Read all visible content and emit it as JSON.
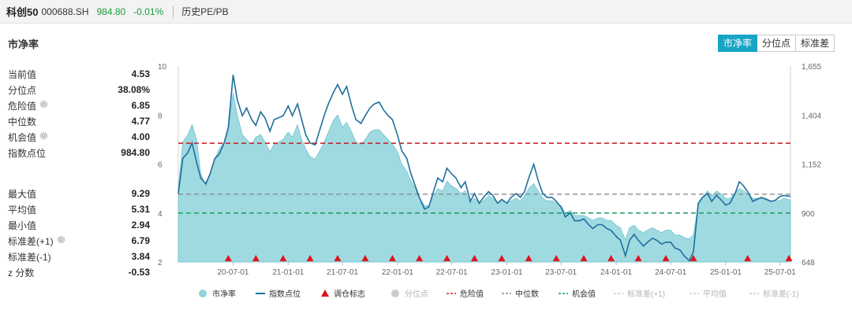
{
  "header": {
    "name": "科创50",
    "code": "000688.SH",
    "price": "984.80",
    "change": "-0.01%",
    "link": "历史PE/PB"
  },
  "section_title": "市净率",
  "tabs": [
    {
      "label": "市净率",
      "active": true
    },
    {
      "label": "分位点",
      "active": false
    },
    {
      "label": "标准差",
      "active": false
    }
  ],
  "stats_top": [
    {
      "label": "当前值",
      "value": "4.53",
      "gear": false
    },
    {
      "label": "分位点",
      "value": "38.08%",
      "gear": false
    },
    {
      "label": "危险值",
      "value": "6.85",
      "gear": true
    },
    {
      "label": "中位数",
      "value": "4.77",
      "gear": false
    },
    {
      "label": "机会值",
      "value": "4.00",
      "gear": true
    },
    {
      "label": "指数点位",
      "value": "984.80",
      "gear": false
    }
  ],
  "stats_bottom": [
    {
      "label": "最大值",
      "value": "9.29",
      "gear": false
    },
    {
      "label": "平均值",
      "value": "5.31",
      "gear": false
    },
    {
      "label": "最小值",
      "value": "2.94",
      "gear": false
    },
    {
      "label": "标准差(+1)",
      "value": "6.79",
      "gear": true
    },
    {
      "label": "标准差(-1)",
      "value": "3.84",
      "gear": false
    },
    {
      "label": "z 分数",
      "value": "-0.53",
      "gear": false
    }
  ],
  "colors": {
    "area": "#8fd3dc",
    "index_line": "#1e6f9c",
    "danger": "#c8262b",
    "median": "#8c8c8c",
    "opportunity": "#1a9a5b",
    "marker": "#e0141b",
    "tab_active": "#17a5c6"
  },
  "chart_data": {
    "type": "area",
    "x_start": "2019-12-31",
    "x_end": "2025-08-05",
    "xticks": [
      "20-07-01",
      "21-01-01",
      "21-07-01",
      "22-01-01",
      "22-07-01",
      "23-01-01",
      "23-07-01",
      "24-01-01",
      "24-07-01",
      "25-01-01",
      "25-07-01"
    ],
    "left_axis": {
      "ticks": [
        "2",
        "4",
        "6",
        "8",
        "10"
      ],
      "range": [
        2,
        10
      ]
    },
    "right_axis": {
      "ticks": [
        "648",
        "900",
        "1,152",
        "1,404",
        "1,655"
      ],
      "range": [
        648,
        1655
      ]
    },
    "danger_value": 6.85,
    "median_value": 4.77,
    "opportunity_value": 4.0,
    "pb_series": [
      [
        "2019-12-31",
        5.0
      ],
      [
        "2020-01-15",
        6.9
      ],
      [
        "2020-02-01",
        7.2
      ],
      [
        "2020-02-15",
        7.6
      ],
      [
        "2020-03-01",
        7.0
      ],
      [
        "2020-03-15",
        5.6
      ],
      [
        "2020-04-01",
        5.1
      ],
      [
        "2020-04-15",
        5.6
      ],
      [
        "2020-05-01",
        6.2
      ],
      [
        "2020-05-15",
        6.6
      ],
      [
        "2020-06-01",
        6.9
      ],
      [
        "2020-06-15",
        7.4
      ],
      [
        "2020-07-01",
        8.9
      ],
      [
        "2020-07-15",
        8.0
      ],
      [
        "2020-08-01",
        7.2
      ],
      [
        "2020-08-15",
        7.0
      ],
      [
        "2020-09-01",
        6.8
      ],
      [
        "2020-09-15",
        7.1
      ],
      [
        "2020-10-01",
        7.2
      ],
      [
        "2020-10-15",
        6.9
      ],
      [
        "2020-11-01",
        6.5
      ],
      [
        "2020-11-15",
        6.8
      ],
      [
        "2020-12-01",
        6.9
      ],
      [
        "2020-12-15",
        7.0
      ],
      [
        "2021-01-01",
        7.3
      ],
      [
        "2021-01-15",
        7.1
      ],
      [
        "2021-02-01",
        7.6
      ],
      [
        "2021-02-15",
        7.0
      ],
      [
        "2021-03-01",
        6.6
      ],
      [
        "2021-03-15",
        6.3
      ],
      [
        "2021-04-01",
        6.2
      ],
      [
        "2021-04-15",
        6.5
      ],
      [
        "2021-05-01",
        6.9
      ],
      [
        "2021-05-15",
        7.3
      ],
      [
        "2021-06-01",
        7.8
      ],
      [
        "2021-06-15",
        8.0
      ],
      [
        "2021-07-01",
        7.5
      ],
      [
        "2021-07-15",
        7.7
      ],
      [
        "2021-08-01",
        7.3
      ],
      [
        "2021-08-15",
        6.9
      ],
      [
        "2021-09-01",
        6.8
      ],
      [
        "2021-09-15",
        7.0
      ],
      [
        "2021-10-01",
        7.3
      ],
      [
        "2021-10-15",
        7.4
      ],
      [
        "2021-11-01",
        7.4
      ],
      [
        "2021-11-15",
        7.2
      ],
      [
        "2021-12-01",
        7.0
      ],
      [
        "2021-12-15",
        6.8
      ],
      [
        "2022-01-01",
        6.5
      ],
      [
        "2022-01-15",
        6.0
      ],
      [
        "2022-02-01",
        5.7
      ],
      [
        "2022-02-15",
        5.3
      ],
      [
        "2022-03-01",
        5.0
      ],
      [
        "2022-03-15",
        4.6
      ],
      [
        "2022-04-01",
        4.3
      ],
      [
        "2022-04-15",
        4.3
      ],
      [
        "2022-05-01",
        4.7
      ],
      [
        "2022-05-15",
        5.0
      ],
      [
        "2022-06-01",
        4.9
      ],
      [
        "2022-06-15",
        5.3
      ],
      [
        "2022-07-01",
        5.1
      ],
      [
        "2022-07-15",
        5.0
      ],
      [
        "2022-08-01",
        4.8
      ],
      [
        "2022-08-15",
        4.9
      ],
      [
        "2022-09-01",
        4.4
      ],
      [
        "2022-09-15",
        4.6
      ],
      [
        "2022-10-01",
        4.4
      ],
      [
        "2022-10-15",
        4.5
      ],
      [
        "2022-11-01",
        4.7
      ],
      [
        "2022-11-15",
        4.6
      ],
      [
        "2022-12-01",
        4.4
      ],
      [
        "2022-12-15",
        4.5
      ],
      [
        "2023-01-01",
        4.4
      ],
      [
        "2023-01-15",
        4.5
      ],
      [
        "2023-02-01",
        4.6
      ],
      [
        "2023-02-15",
        4.5
      ],
      [
        "2023-03-01",
        4.7
      ],
      [
        "2023-03-15",
        5.0
      ],
      [
        "2023-04-01",
        5.2
      ],
      [
        "2023-04-15",
        4.9
      ],
      [
        "2023-05-01",
        4.6
      ],
      [
        "2023-05-15",
        4.5
      ],
      [
        "2023-06-01",
        4.5
      ],
      [
        "2023-06-15",
        4.4
      ],
      [
        "2023-07-01",
        4.3
      ],
      [
        "2023-07-15",
        4.0
      ],
      [
        "2023-08-01",
        4.1
      ],
      [
        "2023-08-15",
        3.9
      ],
      [
        "2023-09-01",
        3.9
      ],
      [
        "2023-09-15",
        3.9
      ],
      [
        "2023-10-01",
        3.8
      ],
      [
        "2023-10-15",
        3.7
      ],
      [
        "2023-11-01",
        3.8
      ],
      [
        "2023-11-15",
        3.8
      ],
      [
        "2023-12-01",
        3.7
      ],
      [
        "2023-12-15",
        3.7
      ],
      [
        "2024-01-01",
        3.5
      ],
      [
        "2024-01-15",
        3.4
      ],
      [
        "2024-02-01",
        2.9
      ],
      [
        "2024-02-15",
        3.4
      ],
      [
        "2024-03-01",
        3.5
      ],
      [
        "2024-03-15",
        3.3
      ],
      [
        "2024-04-01",
        3.2
      ],
      [
        "2024-04-15",
        3.3
      ],
      [
        "2024-05-01",
        3.4
      ],
      [
        "2024-05-15",
        3.3
      ],
      [
        "2024-06-01",
        3.2
      ],
      [
        "2024-06-15",
        3.3
      ],
      [
        "2024-07-01",
        3.3
      ],
      [
        "2024-07-15",
        3.1
      ],
      [
        "2024-08-01",
        3.1
      ],
      [
        "2024-08-15",
        3.0
      ],
      [
        "2024-09-01",
        2.94
      ],
      [
        "2024-09-15",
        3.1
      ],
      [
        "2024-10-01",
        4.3
      ],
      [
        "2024-10-15",
        4.6
      ],
      [
        "2024-11-01",
        4.9
      ],
      [
        "2024-11-15",
        4.7
      ],
      [
        "2024-12-01",
        4.9
      ],
      [
        "2024-12-15",
        4.8
      ],
      [
        "2025-01-01",
        4.6
      ],
      [
        "2025-01-15",
        4.6
      ],
      [
        "2025-02-01",
        4.8
      ],
      [
        "2025-02-15",
        5.0
      ],
      [
        "2025-03-01",
        4.9
      ],
      [
        "2025-03-15",
        4.8
      ],
      [
        "2025-04-01",
        4.6
      ],
      [
        "2025-04-15",
        4.6
      ],
      [
        "2025-05-01",
        4.6
      ],
      [
        "2025-05-15",
        4.6
      ],
      [
        "2025-06-01",
        4.5
      ],
      [
        "2025-06-15",
        4.5
      ],
      [
        "2025-07-01",
        4.5
      ],
      [
        "2025-07-15",
        4.6
      ],
      [
        "2025-08-05",
        4.53
      ]
    ],
    "index_series": [
      [
        "2019-12-31",
        1000
      ],
      [
        "2020-01-15",
        1180
      ],
      [
        "2020-02-01",
        1210
      ],
      [
        "2020-02-15",
        1260
      ],
      [
        "2020-03-01",
        1160
      ],
      [
        "2020-03-15",
        1080
      ],
      [
        "2020-04-01",
        1050
      ],
      [
        "2020-04-15",
        1100
      ],
      [
        "2020-05-01",
        1180
      ],
      [
        "2020-05-15",
        1200
      ],
      [
        "2020-06-01",
        1260
      ],
      [
        "2020-06-15",
        1340
      ],
      [
        "2020-07-01",
        1610
      ],
      [
        "2020-07-15",
        1480
      ],
      [
        "2020-08-01",
        1400
      ],
      [
        "2020-08-15",
        1440
      ],
      [
        "2020-09-01",
        1380
      ],
      [
        "2020-09-15",
        1350
      ],
      [
        "2020-10-01",
        1420
      ],
      [
        "2020-10-15",
        1390
      ],
      [
        "2020-11-01",
        1320
      ],
      [
        "2020-11-15",
        1380
      ],
      [
        "2020-12-01",
        1390
      ],
      [
        "2020-12-15",
        1400
      ],
      [
        "2021-01-01",
        1450
      ],
      [
        "2021-01-15",
        1400
      ],
      [
        "2021-02-01",
        1460
      ],
      [
        "2021-02-15",
        1380
      ],
      [
        "2021-03-01",
        1300
      ],
      [
        "2021-03-15",
        1260
      ],
      [
        "2021-04-01",
        1250
      ],
      [
        "2021-04-15",
        1320
      ],
      [
        "2021-05-01",
        1400
      ],
      [
        "2021-05-15",
        1460
      ],
      [
        "2021-06-01",
        1520
      ],
      [
        "2021-06-15",
        1560
      ],
      [
        "2021-07-01",
        1510
      ],
      [
        "2021-07-15",
        1550
      ],
      [
        "2021-08-01",
        1450
      ],
      [
        "2021-08-15",
        1380
      ],
      [
        "2021-09-01",
        1360
      ],
      [
        "2021-09-15",
        1400
      ],
      [
        "2021-10-01",
        1440
      ],
      [
        "2021-10-15",
        1460
      ],
      [
        "2021-11-01",
        1470
      ],
      [
        "2021-11-15",
        1430
      ],
      [
        "2021-12-01",
        1400
      ],
      [
        "2021-12-15",
        1380
      ],
      [
        "2022-01-01",
        1300
      ],
      [
        "2022-01-15",
        1220
      ],
      [
        "2022-02-01",
        1180
      ],
      [
        "2022-02-15",
        1100
      ],
      [
        "2022-03-01",
        1040
      ],
      [
        "2022-03-15",
        980
      ],
      [
        "2022-04-01",
        920
      ],
      [
        "2022-04-15",
        930
      ],
      [
        "2022-05-01",
        1010
      ],
      [
        "2022-05-15",
        1080
      ],
      [
        "2022-06-01",
        1060
      ],
      [
        "2022-06-15",
        1130
      ],
      [
        "2022-07-01",
        1100
      ],
      [
        "2022-07-15",
        1080
      ],
      [
        "2022-08-01",
        1030
      ],
      [
        "2022-08-15",
        1060
      ],
      [
        "2022-09-01",
        960
      ],
      [
        "2022-09-15",
        1000
      ],
      [
        "2022-10-01",
        950
      ],
      [
        "2022-10-15",
        980
      ],
      [
        "2022-11-01",
        1010
      ],
      [
        "2022-11-15",
        990
      ],
      [
        "2022-12-01",
        950
      ],
      [
        "2022-12-15",
        970
      ],
      [
        "2023-01-01",
        950
      ],
      [
        "2023-01-15",
        980
      ],
      [
        "2023-02-01",
        1000
      ],
      [
        "2023-02-15",
        980
      ],
      [
        "2023-03-01",
        1010
      ],
      [
        "2023-03-15",
        1080
      ],
      [
        "2023-04-01",
        1150
      ],
      [
        "2023-04-15",
        1070
      ],
      [
        "2023-05-01",
        1000
      ],
      [
        "2023-05-15",
        980
      ],
      [
        "2023-06-01",
        980
      ],
      [
        "2023-06-15",
        960
      ],
      [
        "2023-07-01",
        930
      ],
      [
        "2023-07-15",
        880
      ],
      [
        "2023-08-01",
        900
      ],
      [
        "2023-08-15",
        860
      ],
      [
        "2023-09-01",
        860
      ],
      [
        "2023-09-15",
        870
      ],
      [
        "2023-10-01",
        840
      ],
      [
        "2023-10-15",
        820
      ],
      [
        "2023-11-01",
        840
      ],
      [
        "2023-11-15",
        840
      ],
      [
        "2023-12-01",
        820
      ],
      [
        "2023-12-15",
        810
      ],
      [
        "2024-01-01",
        780
      ],
      [
        "2024-01-15",
        760
      ],
      [
        "2024-02-01",
        680
      ],
      [
        "2024-02-15",
        760
      ],
      [
        "2024-03-01",
        790
      ],
      [
        "2024-03-15",
        760
      ],
      [
        "2024-04-01",
        730
      ],
      [
        "2024-04-15",
        750
      ],
      [
        "2024-05-01",
        770
      ],
      [
        "2024-05-15",
        760
      ],
      [
        "2024-06-01",
        740
      ],
      [
        "2024-06-15",
        750
      ],
      [
        "2024-07-01",
        750
      ],
      [
        "2024-07-15",
        720
      ],
      [
        "2024-08-01",
        710
      ],
      [
        "2024-08-15",
        680
      ],
      [
        "2024-09-01",
        655
      ],
      [
        "2024-09-15",
        700
      ],
      [
        "2024-10-01",
        950
      ],
      [
        "2024-10-15",
        980
      ],
      [
        "2024-11-01",
        1000
      ],
      [
        "2024-11-15",
        960
      ],
      [
        "2024-12-01",
        990
      ],
      [
        "2024-12-15",
        970
      ],
      [
        "2025-01-01",
        940
      ],
      [
        "2025-01-15",
        950
      ],
      [
        "2025-02-01",
        1000
      ],
      [
        "2025-02-15",
        1060
      ],
      [
        "2025-03-01",
        1040
      ],
      [
        "2025-03-15",
        1010
      ],
      [
        "2025-04-01",
        960
      ],
      [
        "2025-04-15",
        970
      ],
      [
        "2025-05-01",
        980
      ],
      [
        "2025-05-15",
        970
      ],
      [
        "2025-06-01",
        960
      ],
      [
        "2025-06-15",
        965
      ],
      [
        "2025-07-01",
        985
      ],
      [
        "2025-07-15",
        990
      ],
      [
        "2025-08-05",
        984.8
      ]
    ],
    "rebalance_dates": [
      "2020-06-15",
      "2020-09-15",
      "2020-12-15",
      "2021-03-15",
      "2021-06-15",
      "2021-09-15",
      "2021-12-15",
      "2022-03-15",
      "2022-06-15",
      "2022-09-15",
      "2022-12-15",
      "2023-03-15",
      "2023-06-15",
      "2023-09-15",
      "2023-12-15",
      "2024-03-15",
      "2024-06-15",
      "2024-09-15",
      "2025-03-15",
      "2025-07-31"
    ],
    "legend": [
      {
        "label": "市净率",
        "symbol": "dot",
        "color": "#8fd3dc",
        "active": true
      },
      {
        "label": "指数点位",
        "symbol": "line",
        "color": "#1e6f9c",
        "active": true
      },
      {
        "label": "调仓标志",
        "symbol": "triangle",
        "color": "#e0141b",
        "active": true
      },
      {
        "label": "分位点",
        "symbol": "dot",
        "color": "#cccccc",
        "active": false
      },
      {
        "label": "危险值",
        "symbol": "dash",
        "color": "#c8262b",
        "active": true
      },
      {
        "label": "中位数",
        "symbol": "dash",
        "color": "#8c8c8c",
        "active": true
      },
      {
        "label": "机会值",
        "symbol": "dash",
        "color": "#1a9a5b",
        "active": true
      },
      {
        "label": "标准差(+1)",
        "symbol": "dash",
        "color": "#cccccc",
        "active": false
      },
      {
        "label": "平均值",
        "symbol": "dash",
        "color": "#cccccc",
        "active": false
      },
      {
        "label": "标准差(-1)",
        "symbol": "dash",
        "color": "#cccccc",
        "active": false
      }
    ]
  }
}
